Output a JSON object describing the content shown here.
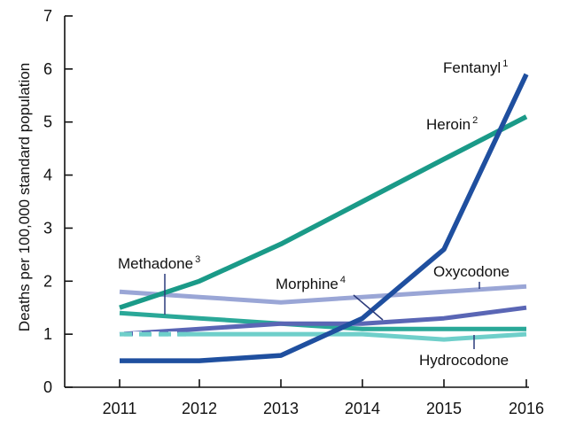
{
  "chart_data": {
    "type": "line",
    "title": "",
    "xlabel": "",
    "ylabel": "Deaths per 100,000 standard population",
    "x": [
      2011,
      2012,
      2013,
      2014,
      2015,
      2016
    ],
    "xlim": [
      2011,
      2016
    ],
    "ylim": [
      0,
      7
    ],
    "yticks": [
      0,
      1,
      2,
      3,
      4,
      5,
      6,
      7
    ],
    "grid": false,
    "legend": "none (series labeled directly on chart)",
    "series": [
      {
        "name": "Fentanyl",
        "label_text": "Fentanyl",
        "label_sup": "1",
        "color": "#1f4f9f",
        "values": [
          0.5,
          0.5,
          0.6,
          1.3,
          2.6,
          5.9
        ]
      },
      {
        "name": "Heroin",
        "label_text": "Heroin",
        "label_sup": "2",
        "color": "#1a9a88",
        "values": [
          1.5,
          2.0,
          2.7,
          3.5,
          4.3,
          5.1
        ]
      },
      {
        "name": "Methadone",
        "label_text": "Methadone",
        "label_sup": "3",
        "color": "#2aa898",
        "values": [
          1.4,
          1.3,
          1.2,
          1.1,
          1.1,
          1.1
        ]
      },
      {
        "name": "Morphine",
        "label_text": "Morphine",
        "label_sup": "4",
        "color": "#5a66b5",
        "values": [
          1.0,
          1.1,
          1.2,
          1.2,
          1.3,
          1.5
        ]
      },
      {
        "name": "Oxycodone",
        "label_text": "Oxycodone",
        "label_sup": "",
        "color": "#9aa6d6",
        "values": [
          1.8,
          1.7,
          1.6,
          1.7,
          1.8,
          1.9
        ]
      },
      {
        "name": "Hydrocodone",
        "label_text": "Hydrocodone",
        "label_sup": "",
        "color": "#6fcfca",
        "values": [
          1.0,
          1.0,
          1.0,
          1.0,
          0.9,
          1.0
        ]
      }
    ]
  }
}
